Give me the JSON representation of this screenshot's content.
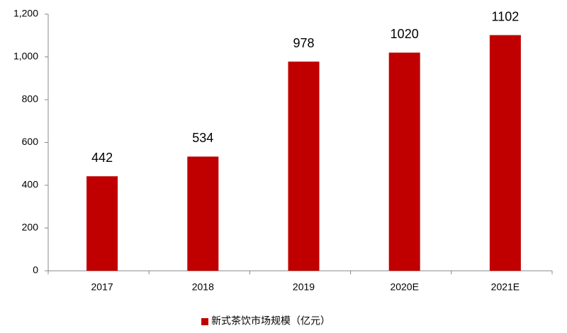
{
  "chart_data": {
    "type": "bar",
    "categories": [
      "2017",
      "2018",
      "2019",
      "2020E",
      "2021E"
    ],
    "series": [
      {
        "name": "新式茶饮市场规模（亿元）",
        "color": "#c00000",
        "values": [
          442,
          534,
          978,
          1020,
          1102
        ]
      }
    ],
    "ylim": [
      0,
      1200
    ],
    "yticks": [
      0,
      200,
      400,
      600,
      800,
      {
        "value": 1000,
        "label": "1,000"
      },
      {
        "value": 1200,
        "label": "1,200"
      }
    ],
    "grid": false,
    "legend": "bottom"
  }
}
